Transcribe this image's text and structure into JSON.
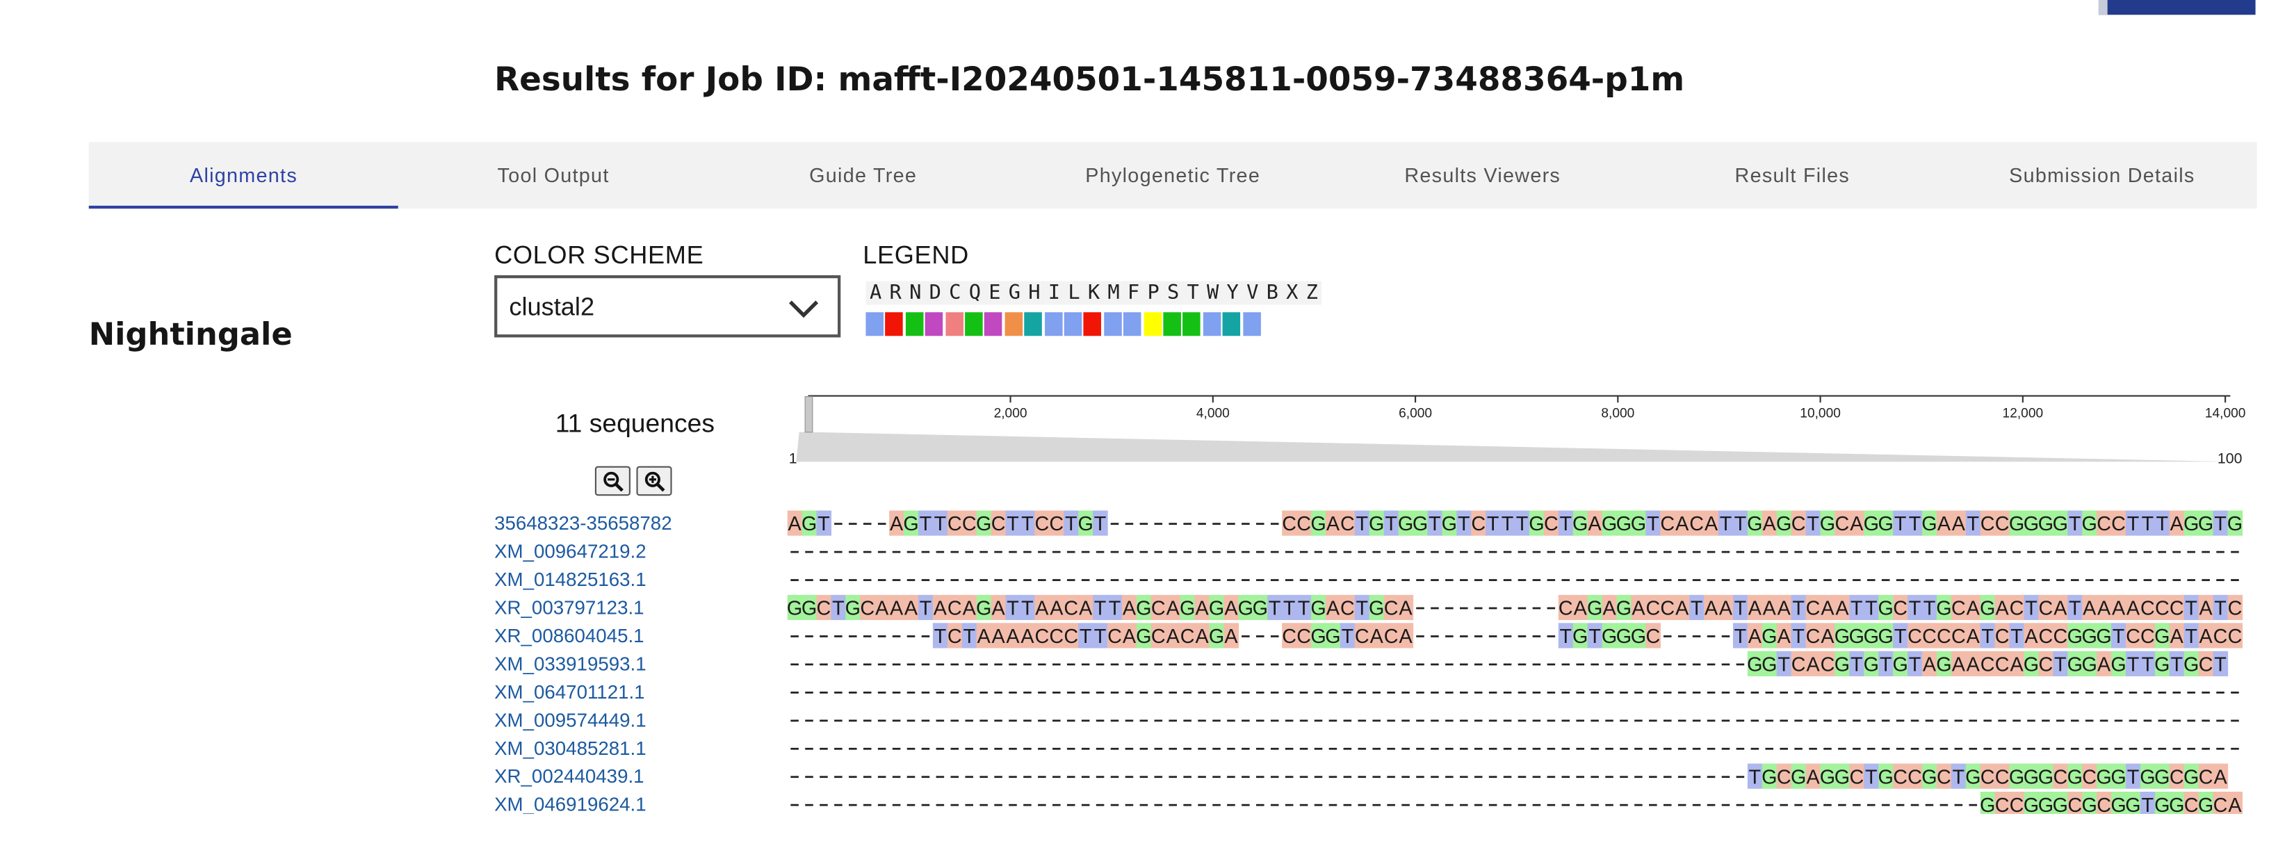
{
  "page": {
    "job_title": "Results for Job ID: mafft-I20240501-145811-0059-73488364-p1m",
    "side_heading": "Nightingale"
  },
  "tabs": [
    {
      "label": "Alignments",
      "active": true
    },
    {
      "label": "Tool Output",
      "active": false
    },
    {
      "label": "Guide Tree",
      "active": false
    },
    {
      "label": "Phylogenetic Tree",
      "active": false
    },
    {
      "label": "Results Viewers",
      "active": false
    },
    {
      "label": "Result Files",
      "active": false
    },
    {
      "label": "Submission Details",
      "active": false
    }
  ],
  "color_scheme": {
    "label": "COLOR SCHEME",
    "value": "clustal2",
    "icon": "chevron-down-icon"
  },
  "legend": {
    "label": "LEGEND",
    "items": [
      {
        "letter": "A",
        "color": "#80a0f0"
      },
      {
        "letter": "R",
        "color": "#f01505"
      },
      {
        "letter": "N",
        "color": "#15c015"
      },
      {
        "letter": "D",
        "color": "#c048c0"
      },
      {
        "letter": "C",
        "color": "#f08080"
      },
      {
        "letter": "Q",
        "color": "#15c015"
      },
      {
        "letter": "E",
        "color": "#c048c0"
      },
      {
        "letter": "G",
        "color": "#f09048"
      },
      {
        "letter": "H",
        "color": "#15a4a4"
      },
      {
        "letter": "I",
        "color": "#80a0f0"
      },
      {
        "letter": "L",
        "color": "#80a0f0"
      },
      {
        "letter": "K",
        "color": "#f01505"
      },
      {
        "letter": "M",
        "color": "#80a0f0"
      },
      {
        "letter": "F",
        "color": "#80a0f0"
      },
      {
        "letter": "P",
        "color": "#ffff00"
      },
      {
        "letter": "S",
        "color": "#15c015"
      },
      {
        "letter": "T",
        "color": "#15c015"
      },
      {
        "letter": "W",
        "color": "#80a0f0"
      },
      {
        "letter": "Y",
        "color": "#15a4a4"
      },
      {
        "letter": "V",
        "color": "#80a0f0"
      },
      {
        "letter": "B",
        "color": "#ffffff"
      },
      {
        "letter": "X",
        "color": "#ffffff"
      },
      {
        "letter": "Z",
        "color": "#ffffff"
      }
    ]
  },
  "sequence_count": "11 sequences",
  "zoom": {
    "out_icon": "zoom-out-icon",
    "in_icon": "zoom-in-icon"
  },
  "navigation": {
    "ticks": [
      "2,000",
      "4,000",
      "6,000",
      "8,000",
      "10,000",
      "12,000",
      "14,000"
    ],
    "range_start": "1",
    "range_end": "100",
    "axis_min": 1,
    "axis_max": 14050,
    "tick_values": [
      2000,
      4000,
      6000,
      8000,
      10000,
      12000,
      14000
    ]
  },
  "alignment": {
    "nucleotide_colors": {
      "A": "#f3bcaa",
      "C": "#f3bcaa",
      "G": "#a3f29c",
      "T": "#aeb8ee"
    },
    "rows": [
      {
        "name": "35648323-35658782",
        "seq": "AGT----AGTTCCGCTTCCTGT------------CCGACTGTGGTGTCTTTGCTGAGGGTCACATTGAGCTGCAGGTTGAATCCGGGGTGCCTTTAGGTG"
      },
      {
        "name": "XM_009647219.2",
        "seq": "----------------------------------------------------------------------------------------------------"
      },
      {
        "name": "XM_014825163.1",
        "seq": "----------------------------------------------------------------------------------------------------"
      },
      {
        "name": "XR_003797123.1",
        "seq": "GGCTGCAAATACAGATTAACATTAGCAGAGAGGTTTGACTGCA----------CAGAGACCATAATAAATCAATTGCTTGCAGACTCATAAAACCCTATC"
      },
      {
        "name": "XR_008604045.1",
        "seq": "----------TCTAAAACCCTTCAGCACAGA---CCGGTCACA----------TGTGGGC-----TAGATCAGGGGTCCCCATCTACCGGGTCCGATACC"
      },
      {
        "name": "XM_033919593.1",
        "seq": "------------------------------------------------------------------GGTCACGTGTGTAGAACCAGCTGGAGTTGTGCT"
      },
      {
        "name": "XM_064701121.1",
        "seq": "----------------------------------------------------------------------------------------------------"
      },
      {
        "name": "XM_009574449.1",
        "seq": "----------------------------------------------------------------------------------------------------"
      },
      {
        "name": "XM_030485281.1",
        "seq": "----------------------------------------------------------------------------------------------------"
      },
      {
        "name": "XR_002440439.1",
        "seq": "------------------------------------------------------------------TGCGAGGCTGCCGCTGCCGGGCGCGGTGGCGCA"
      },
      {
        "name": "XM_046919624.1",
        "seq": "----------------------------------------------------------------------------------GCCGGGCGCGGTGGCGCA"
      }
    ]
  }
}
